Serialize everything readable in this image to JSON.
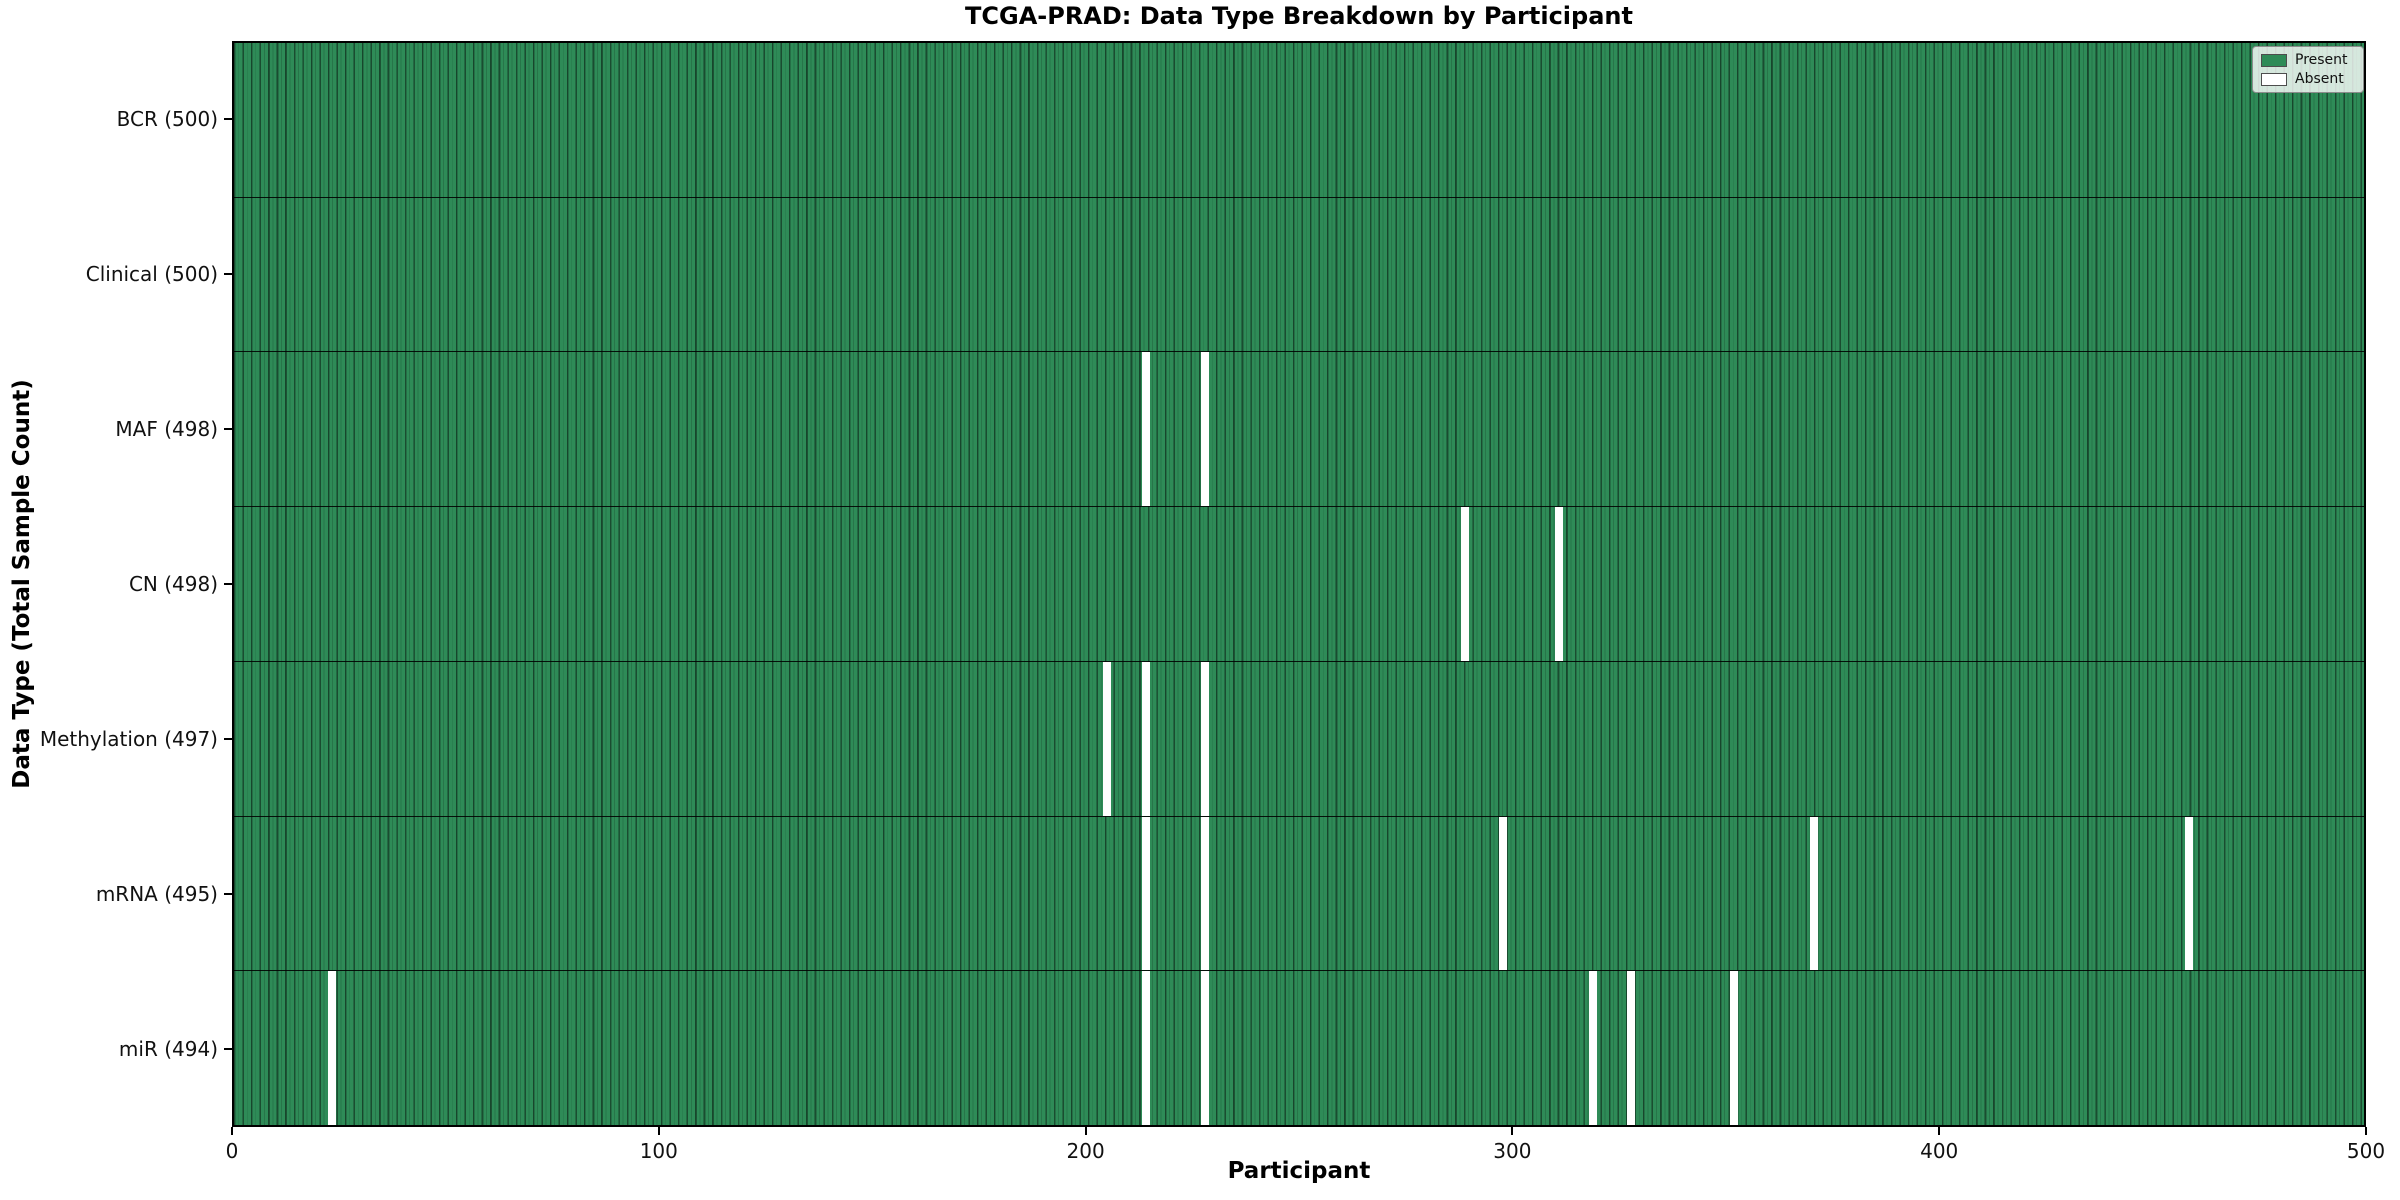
{
  "title": "TCGA-PRAD: Data Type Breakdown by Participant",
  "axes": {
    "x_label": "Participant",
    "y_label": "Data Type (Total Sample Count)"
  },
  "legend": {
    "items": [
      {
        "label": "Present",
        "color": "#2e8b57"
      },
      {
        "label": "Absent",
        "color": "#ffffff"
      }
    ],
    "position": "upper right"
  },
  "colors": {
    "present": "#2e8b57",
    "absent": "#ffffff",
    "bar_edge": "#1e4f36",
    "axis": "#000000",
    "legend_background": "rgba(255,255,255,0.8)"
  },
  "chart_data": {
    "type": "heatmap",
    "title": "TCGA-PRAD: Data Type Breakdown by Participant",
    "xlabel": "Participant",
    "ylabel": "Data Type (Total Sample Count)",
    "x_range": [
      0,
      500
    ],
    "x_tick_values": [
      0,
      100,
      200,
      300,
      400,
      500
    ],
    "n_participants": 500,
    "grid": false,
    "legend_position": "upper right",
    "rows": [
      {
        "label": "BCR (500)",
        "data_type": "BCR",
        "total_samples": 500,
        "absent_participants": []
      },
      {
        "label": "Clinical (500)",
        "data_type": "Clinical",
        "total_samples": 500,
        "absent_participants": []
      },
      {
        "label": "MAF (498)",
        "data_type": "MAF",
        "total_samples": 498,
        "absent_participants": [
          214,
          228
        ]
      },
      {
        "label": "CN (498)",
        "data_type": "CN",
        "total_samples": 498,
        "absent_participants": [
          289,
          311
        ]
      },
      {
        "label": "Methylation (497)",
        "data_type": "Methylation",
        "total_samples": 497,
        "absent_participants": [
          205,
          214,
          228
        ]
      },
      {
        "label": "mRNA (495)",
        "data_type": "mRNA",
        "total_samples": 495,
        "absent_participants": [
          214,
          228,
          298,
          371,
          459
        ]
      },
      {
        "label": "miR (494)",
        "data_type": "miR",
        "total_samples": 494,
        "absent_participants": [
          23,
          214,
          228,
          319,
          328,
          352
        ]
      }
    ]
  }
}
